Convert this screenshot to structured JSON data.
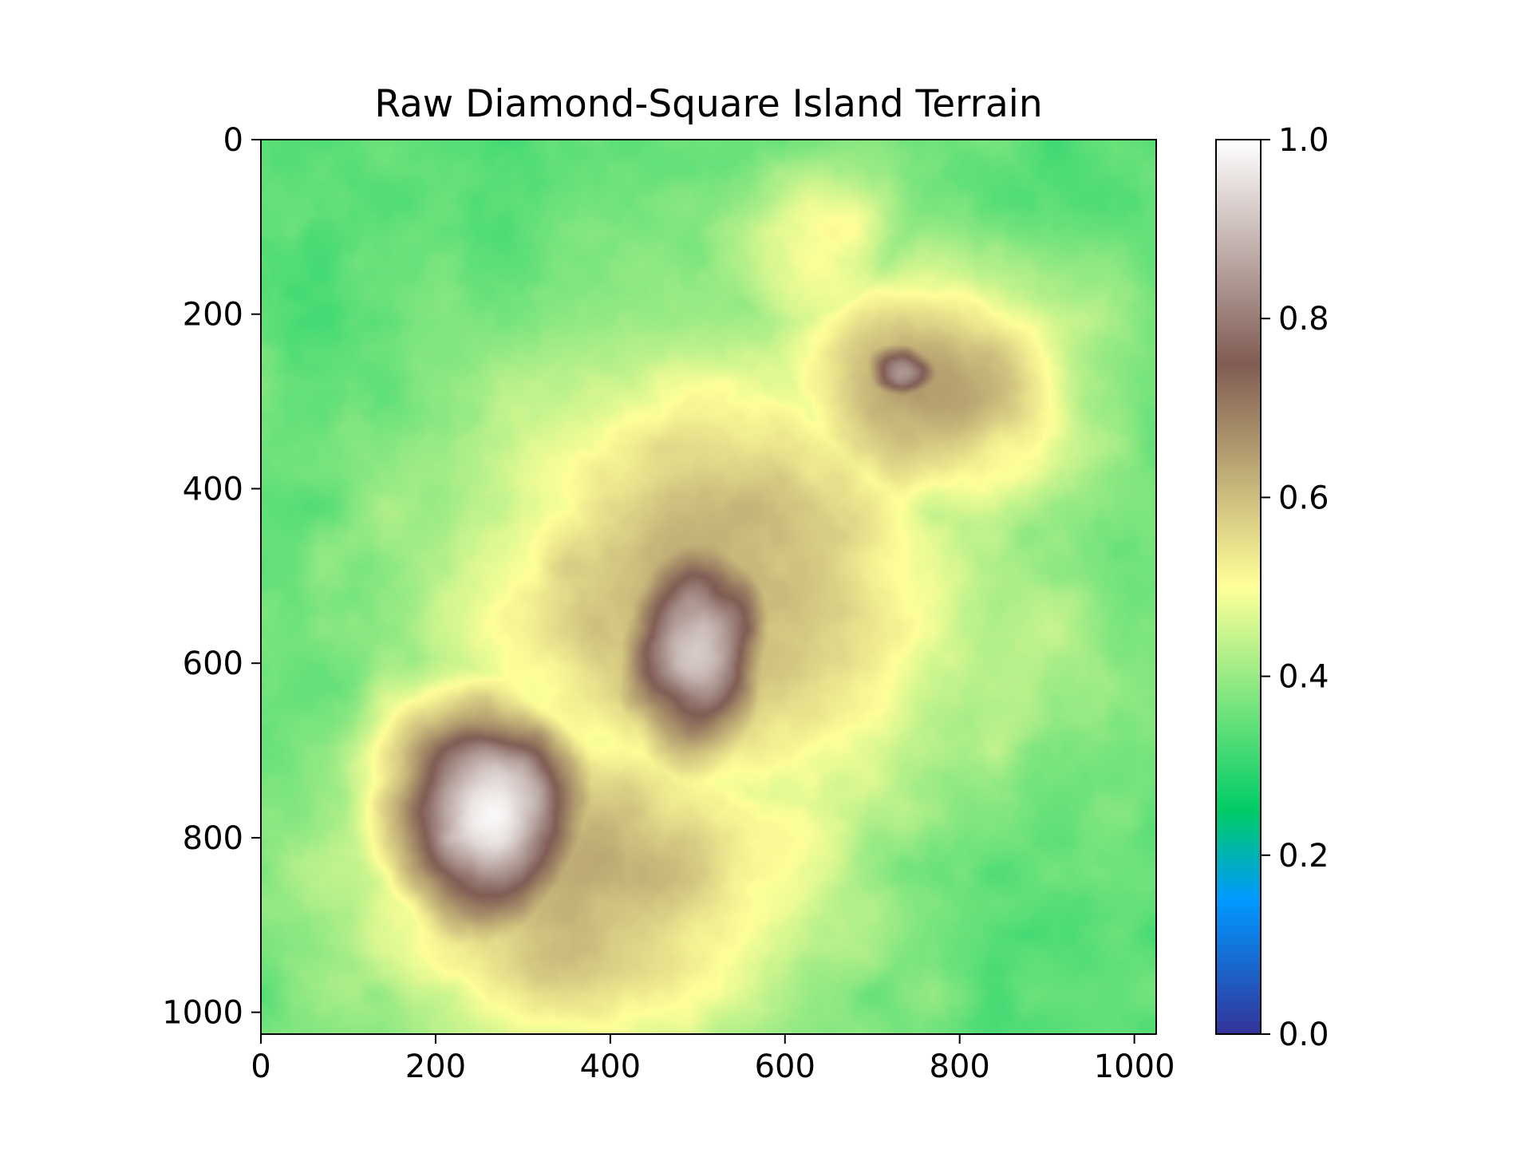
{
  "chart_data": {
    "type": "heatmap",
    "title": "Raw Diamond-Square Island Terrain",
    "xlabel": "",
    "ylabel": "",
    "colormap": "terrain",
    "xlim": [
      0,
      1025
    ],
    "ylim": [
      1025,
      0
    ],
    "x_ticks": [
      0,
      200,
      400,
      600,
      800,
      1000
    ],
    "x_tick_labels": [
      "0",
      "200",
      "400",
      "600",
      "800",
      "1000"
    ],
    "y_ticks": [
      0,
      200,
      400,
      600,
      800,
      1000
    ],
    "y_tick_labels": [
      "0",
      "200",
      "400",
      "600",
      "800",
      "1000"
    ],
    "colorbar": {
      "range": [
        0.0,
        1.0
      ],
      "ticks": [
        0.0,
        0.2,
        0.4,
        0.6,
        0.8,
        1.0
      ],
      "tick_labels": [
        "0.0",
        "0.2",
        "0.4",
        "0.6",
        "0.8",
        "1.0"
      ]
    },
    "colormap_stops": [
      {
        "value": 0.0,
        "color": "#333399"
      },
      {
        "value": 0.15,
        "color": "#0099ff"
      },
      {
        "value": 0.25,
        "color": "#00cc66"
      },
      {
        "value": 0.5,
        "color": "#ffff99"
      },
      {
        "value": 0.75,
        "color": "#805c54"
      },
      {
        "value": 1.0,
        "color": "#ffffff"
      }
    ],
    "features": [
      {
        "name": "southwest peak",
        "x": 260,
        "y": 770,
        "rx": 130,
        "ry": 150,
        "height": 0.98
      },
      {
        "name": "central peak",
        "x": 500,
        "y": 580,
        "rx": 95,
        "ry": 140,
        "height": 0.93
      },
      {
        "name": "northeast summit",
        "x": 730,
        "y": 270,
        "rx": 60,
        "ry": 45,
        "height": 0.82
      },
      {
        "name": "central ridge",
        "x": 520,
        "y": 520,
        "rx": 330,
        "ry": 300,
        "height": 0.62
      },
      {
        "name": "northeast highland",
        "x": 760,
        "y": 290,
        "rx": 200,
        "ry": 160,
        "height": 0.64
      },
      {
        "name": "southern highland",
        "x": 380,
        "y": 840,
        "rx": 300,
        "ry": 230,
        "height": 0.62
      },
      {
        "name": "northern ridge",
        "x": 640,
        "y": 140,
        "rx": 110,
        "ry": 140,
        "height": 0.52
      },
      {
        "name": "eastern plateau",
        "x": 840,
        "y": 600,
        "rx": 160,
        "ry": 170,
        "height": 0.44
      }
    ]
  }
}
